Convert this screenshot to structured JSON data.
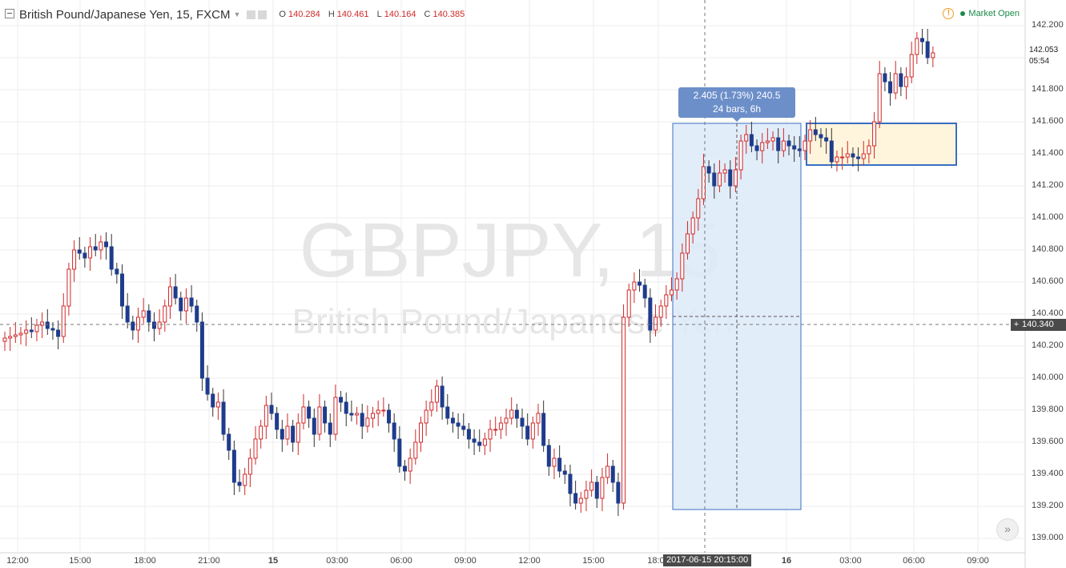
{
  "header": {
    "title": "British Pound/Japanese Yen, 15, FXCM",
    "ohlc": [
      {
        "k": "O",
        "v": "140.284"
      },
      {
        "k": "H",
        "v": "140.461"
      },
      {
        "k": "L",
        "v": "140.164"
      },
      {
        "k": "C",
        "v": "140.385"
      }
    ],
    "market_status": "Market Open",
    "icons": [
      "collapse-icon",
      "settings-icon",
      "hide-icon",
      "warning-icon"
    ]
  },
  "watermark": {
    "symbol": "GBPJPY, 15",
    "name": "British Pound/Japanese Yen"
  },
  "measure": {
    "line1": "2.405 (1.73%) 240.5",
    "line2": "24 bars, 6h"
  },
  "crosshair": {
    "price": "140.340",
    "time": "2017-06-15 20:15:00"
  },
  "current_price": {
    "price": "142.053",
    "countdown": "05:54"
  },
  "colors": {
    "up": "#d02828",
    "down": "#1e3c8c",
    "measure_fill": "#ddeaf9",
    "measure_border": "#3a6fc4",
    "rect_fill": "#fff5dc",
    "rect_border": "#3a6fc4"
  },
  "chart_data": {
    "type": "candlestick",
    "title": "British Pound/Japanese Yen, 15, FXCM",
    "interval": "15",
    "y_ticks": [
      "142.200",
      "142.000",
      "141.800",
      "141.600",
      "141.400",
      "141.200",
      "141.000",
      "140.800",
      "140.600",
      "140.400",
      "140.200",
      "140.000",
      "139.800",
      "139.600",
      "139.400",
      "139.200",
      "139.000"
    ],
    "y_range": [
      138.97,
      142.3
    ],
    "x_ticks": [
      "12:00",
      "15:00",
      "18:00",
      "21:00",
      "15",
      "03:00",
      "06:00",
      "09:00",
      "12:00",
      "15:00",
      "18:00",
      "16",
      "03:00",
      "06:00",
      "09:00"
    ],
    "grid": true,
    "close": [
      140.25,
      140.26,
      140.27,
      140.28,
      140.3,
      140.29,
      140.33,
      140.35,
      140.31,
      140.3,
      140.26,
      140.45,
      140.68,
      140.8,
      140.78,
      140.75,
      140.82,
      140.8,
      140.85,
      140.82,
      140.68,
      140.65,
      140.45,
      140.35,
      140.3,
      140.38,
      140.42,
      140.35,
      140.31,
      140.35,
      140.45,
      140.57,
      140.5,
      140.42,
      140.5,
      140.45,
      140.35,
      140.0,
      139.9,
      139.82,
      139.85,
      139.65,
      139.55,
      139.35,
      139.33,
      139.4,
      139.5,
      139.62,
      139.7,
      139.83,
      139.78,
      139.68,
      139.62,
      139.7,
      139.6,
      139.72,
      139.82,
      139.75,
      139.65,
      139.82,
      139.72,
      139.65,
      139.88,
      139.85,
      139.78,
      139.77,
      139.78,
      139.7,
      139.75,
      139.78,
      139.8,
      139.8,
      139.72,
      139.62,
      139.45,
      139.42,
      139.5,
      139.6,
      139.72,
      139.8,
      139.85,
      139.95,
      139.82,
      139.75,
      139.72,
      139.7,
      139.68,
      139.62,
      139.6,
      139.58,
      139.62,
      139.68,
      139.68,
      139.72,
      139.75,
      139.8,
      139.75,
      139.7,
      139.62,
      139.72,
      139.78,
      139.58,
      139.45,
      139.5,
      139.42,
      139.4,
      139.28,
      139.22,
      139.25,
      139.3,
      139.35,
      139.25,
      139.38,
      139.45,
      139.35,
      139.22,
      140.38,
      140.55,
      140.6,
      140.58,
      140.5,
      140.3,
      140.38,
      140.45,
      140.52,
      140.55,
      140.62,
      140.78,
      140.9,
      141.0,
      141.12,
      141.32,
      141.28,
      141.2,
      141.28,
      141.3,
      141.2,
      141.3,
      141.48,
      141.52,
      141.45,
      141.42,
      141.47,
      141.48,
      141.5,
      141.42,
      141.48,
      141.45,
      141.43,
      141.42,
      141.48,
      141.55,
      141.52,
      141.5,
      141.48,
      141.35,
      141.38,
      141.38,
      141.4,
      141.38,
      141.37,
      141.4,
      141.45,
      141.6,
      141.9,
      141.85,
      141.78,
      141.9,
      141.82,
      141.88,
      142.02,
      142.12,
      142.1,
      142.0,
      142.03
    ]
  }
}
